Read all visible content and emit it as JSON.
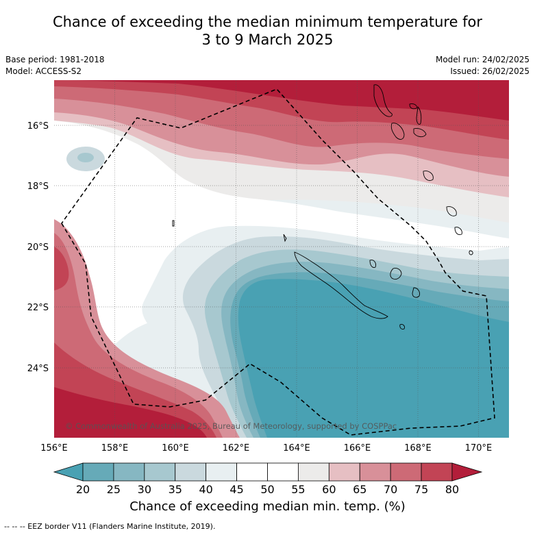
{
  "header": {
    "title_line1": "Chance of exceeding the median minimum temperature for",
    "title_line2": "3 to 9 March 2025"
  },
  "meta": {
    "base_period": "Base period: 1981-2018",
    "model": "Model: ACCESS-S2",
    "model_run": "Model run: 24/02/2025",
    "issued": "Issued: 26/02/2025"
  },
  "map": {
    "lon_labels": [
      "156°E",
      "158°E",
      "160°E",
      "162°E",
      "164°E",
      "166°E",
      "168°E",
      "170°E"
    ],
    "lat_labels": [
      "16°S",
      "18°S",
      "20°S",
      "22°S",
      "24°S"
    ],
    "copyright": "© Commonwealth of Australia 2025, Bureau of Meteorology, supported by COSPPac",
    "colors": {
      "p80plus": "#b31e3a",
      "p75": "#c24455",
      "p70": "#cd6a76",
      "p65": "#d89099",
      "p60": "#e6bfc3",
      "p55": "#ecebea",
      "p50": "#ffffff",
      "p45": "#ffffff",
      "p40": "#e8eff1",
      "p35": "#cad9de",
      "p30": "#a7c8cf",
      "p25": "#86b7c2",
      "p20": "#66aab8",
      "p20minus": "#49a1b3"
    }
  },
  "colorbar": {
    "ticks": [
      "20",
      "25",
      "30",
      "35",
      "40",
      "45",
      "50",
      "55",
      "60",
      "65",
      "70",
      "75",
      "80"
    ],
    "colors": [
      "#49a1b3",
      "#66aab8",
      "#86b7c2",
      "#a7c8cf",
      "#cad9de",
      "#e8eff1",
      "#ffffff",
      "#ffffff",
      "#ecebea",
      "#e6bfc3",
      "#d89099",
      "#cd6a76",
      "#c24455",
      "#b31e3a"
    ],
    "title": "Chance of exceeding median min. temp. (%)"
  },
  "footnote": "--  --  -- EEZ border V11 (Flanders Marine Institute, 2019)."
}
